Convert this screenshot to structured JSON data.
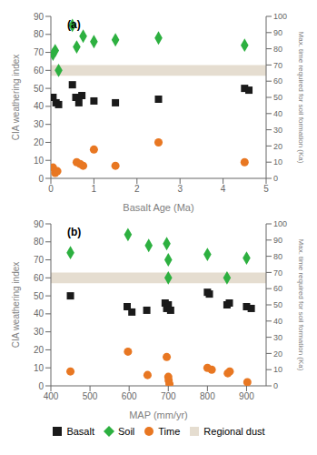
{
  "chart_data": [
    {
      "type": "scatter",
      "annotation": "(a)",
      "xlabel": "Basalt Age (Ma)",
      "ylabel": "CIA weathering index",
      "y2label": "Max. time required for soil formation (Ka)",
      "xlim": [
        0,
        5
      ],
      "xticks": [
        0,
        1,
        2,
        3,
        4,
        5
      ],
      "ylim": [
        0,
        90
      ],
      "yticks": [
        0,
        10,
        20,
        30,
        40,
        50,
        60,
        70,
        80,
        90
      ],
      "y2lim": [
        0,
        100
      ],
      "y2ticks": [
        0,
        10,
        20,
        30,
        40,
        50,
        60,
        70,
        80,
        90,
        100
      ],
      "series": [
        {
          "name": "Basalt",
          "color": "#1a1a1a",
          "marker": "square",
          "x": [
            0.05,
            0.12,
            0.18,
            0.5,
            0.58,
            0.65,
            0.72,
            1.0,
            1.5,
            2.5,
            4.5,
            4.6
          ],
          "values": [
            45,
            42,
            41,
            52,
            45,
            42,
            46,
            43,
            42,
            44,
            50,
            49
          ]
        },
        {
          "name": "Soil",
          "color": "#2db040",
          "marker": "diamond",
          "x": [
            0.05,
            0.1,
            0.18,
            0.5,
            0.6,
            0.75,
            1.0,
            1.5,
            2.5,
            4.5
          ],
          "values": [
            69,
            71,
            60,
            85,
            73,
            79,
            76,
            77,
            78,
            74
          ]
        },
        {
          "name": "Time",
          "color": "#e87722",
          "marker": "circle",
          "x": [
            0.05,
            0.1,
            0.15,
            0.6,
            0.68,
            0.75,
            1.0,
            1.5,
            2.5,
            4.5
          ],
          "values": [
            6,
            3,
            4,
            9,
            8,
            7,
            16,
            7,
            20,
            9
          ]
        }
      ],
      "bands": [
        {
          "name": "Regional dust",
          "color": "#e5ddd0",
          "range": [
            57,
            63
          ]
        }
      ]
    },
    {
      "type": "scatter",
      "annotation": "(b)",
      "xlabel": "MAP (mm/yr)",
      "ylabel": "CIA weathering index",
      "y2label": "Max. time required for soil formation (Ka)",
      "xlim": [
        400,
        950
      ],
      "xticks": [
        400,
        500,
        600,
        700,
        800,
        900
      ],
      "ylim": [
        0,
        90
      ],
      "yticks": [
        0,
        10,
        20,
        30,
        40,
        50,
        60,
        70,
        80,
        90
      ],
      "y2lim": [
        0,
        100
      ],
      "y2ticks": [
        0,
        10,
        20,
        30,
        40,
        50,
        60,
        70,
        80,
        90,
        100
      ],
      "series": [
        {
          "name": "Basalt",
          "color": "#1a1a1a",
          "marker": "square",
          "x": [
            450,
            595,
            607,
            645,
            692,
            696,
            700,
            706,
            800,
            805,
            850,
            856,
            900,
            912
          ],
          "values": [
            50,
            44,
            41,
            42,
            46,
            43,
            45,
            42,
            52,
            51,
            45,
            46,
            44,
            43
          ]
        },
        {
          "name": "Soil",
          "color": "#2db040",
          "marker": "diamond",
          "x": [
            450,
            597,
            650,
            696,
            700,
            700,
            800,
            850,
            900
          ],
          "values": [
            74,
            84,
            78,
            79,
            70,
            60,
            73,
            60,
            71
          ]
        },
        {
          "name": "Time",
          "color": "#e87722",
          "marker": "circle",
          "x": [
            450,
            597,
            647,
            696,
            700,
            701,
            703,
            800,
            811,
            852,
            857,
            902
          ],
          "values": [
            8,
            19,
            6,
            16,
            5,
            3,
            1,
            10,
            9,
            7,
            8,
            2
          ]
        }
      ],
      "bands": [
        {
          "name": "Regional dust",
          "color": "#e5ddd0",
          "range": [
            57,
            63
          ]
        }
      ],
      "legend": "bottom"
    }
  ]
}
